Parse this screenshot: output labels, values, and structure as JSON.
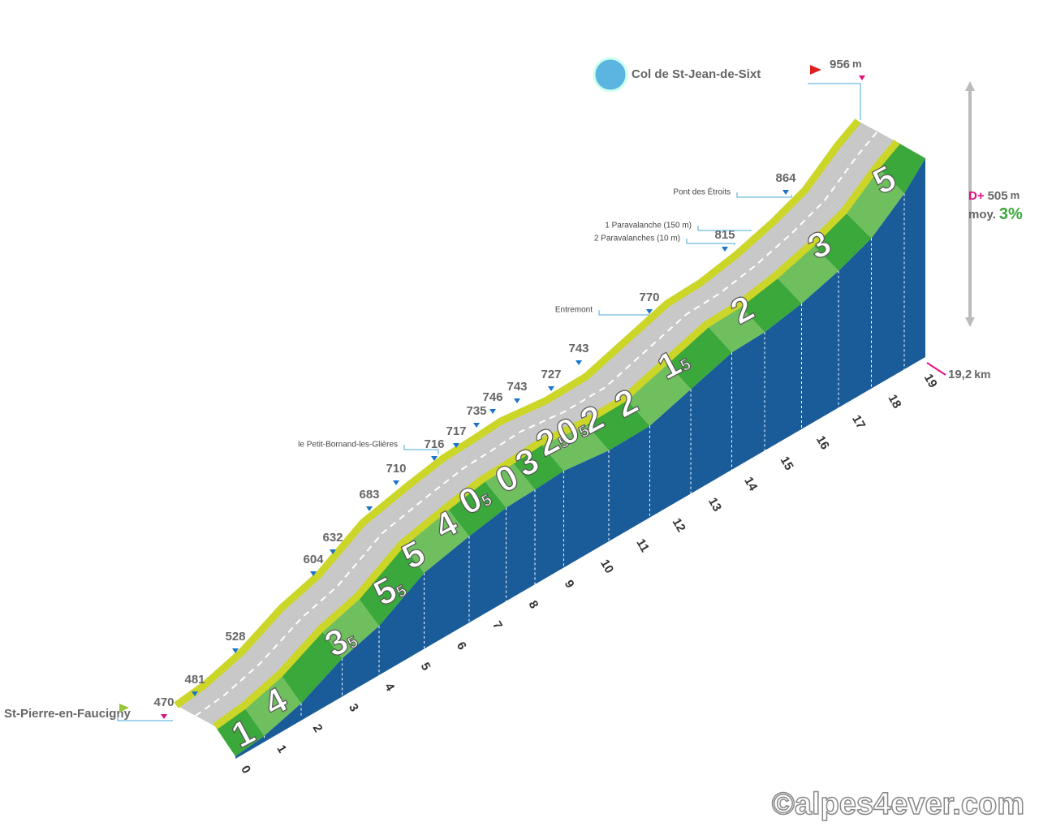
{
  "summit": {
    "name": "Col de St-Jean-de-Sixt",
    "altitude": "956",
    "unit": "m"
  },
  "start": {
    "name": "St-Pierre-en-Faucigny",
    "altitude": "470"
  },
  "stats": {
    "gain_label": "D+",
    "gain": "505",
    "gain_unit": "m",
    "avg_label": "moy.",
    "avg": "3%"
  },
  "distance": {
    "value": "19,2",
    "unit": "km"
  },
  "km_ticks": [
    "0",
    "1",
    "2",
    "3",
    "4",
    "5",
    "6",
    "7",
    "8",
    "9",
    "10",
    "11",
    "12",
    "13",
    "14",
    "15",
    "16",
    "17",
    "18",
    "19"
  ],
  "altitudes": [
    "481",
    "528",
    "604",
    "632",
    "683",
    "710",
    "716",
    "717",
    "735",
    "746",
    "743",
    "727",
    "743",
    "770",
    "815",
    "864"
  ],
  "places": [
    "le Petit-Bornand-les-Glières",
    "Entremont",
    "1 Paravalanche (150 m)",
    "2 Paravalanches (10 m)",
    "Pont des Étroits"
  ],
  "gradients": [
    {
      "big": "1"
    },
    {
      "big": "4"
    },
    {
      "big": "3",
      "small": "5"
    },
    {
      "big": "5",
      "small": "5"
    },
    {
      "big": "5"
    },
    {
      "big": "4"
    },
    {
      "big": "0",
      "small": "5"
    },
    {
      "big": "0"
    },
    {
      "big": "3"
    },
    {
      "big": "2",
      "small": "5"
    },
    {
      "big": "0",
      "small": "5"
    },
    {
      "big": "2"
    },
    {
      "big": "2"
    },
    {
      "big": "1",
      "small": "5"
    },
    {
      "big": "2"
    },
    {
      "big": "3"
    },
    {
      "big": "5"
    }
  ],
  "credit": "©alpes4ever.com"
}
